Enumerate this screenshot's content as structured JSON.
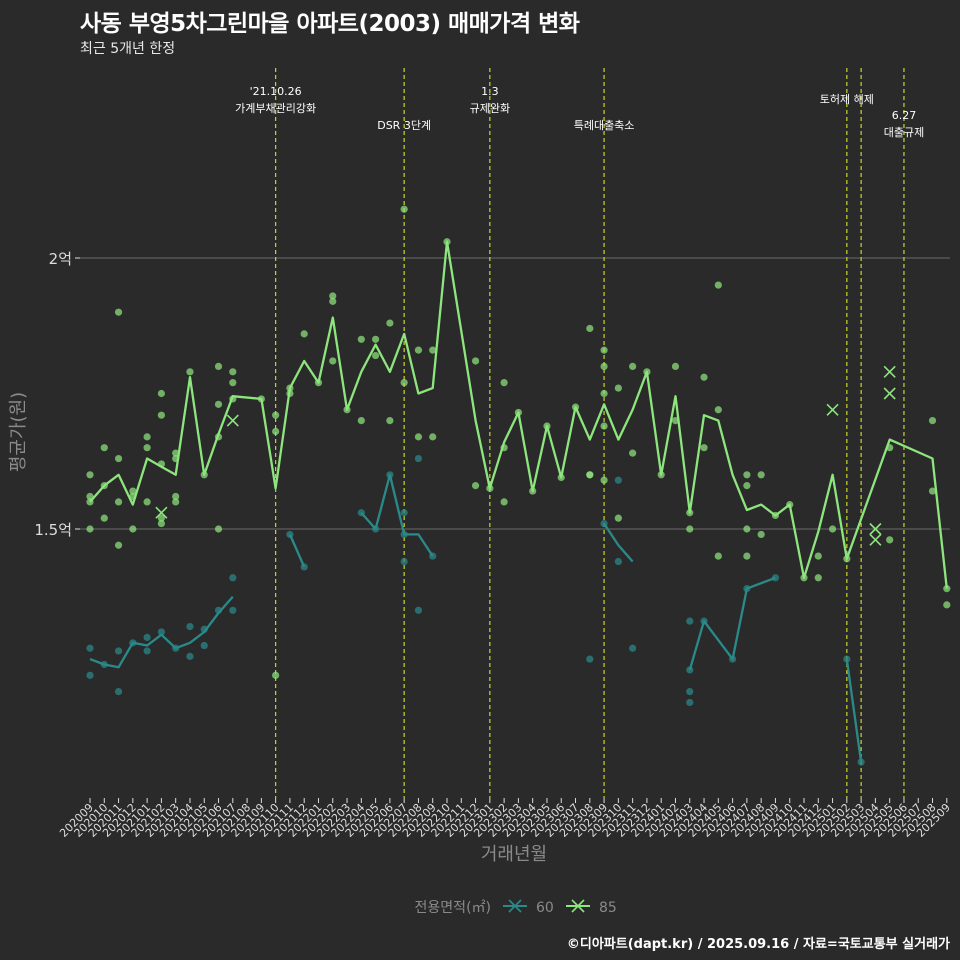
{
  "title": "사동 부영5차그린마을 아파트(2003) 매매가격 변화",
  "subtitle": "최근 5개년 한정",
  "caption": "©디아파트(dapt.kr) / 2025.09.16 / 자료=국토교통부 실거래가",
  "colors": {
    "background": "#2b2a2b",
    "series_60": "#2a8a8a",
    "series_85": "#8de57d",
    "event_line": "#c8d62a",
    "gridline": "#6b6b6b",
    "axis_title": "#8a8a8a",
    "tick_label": "#dddddd"
  },
  "chart_data": {
    "type": "line",
    "xlabel": "거래년월",
    "ylabel": "평균가(원)",
    "y_unit": "억",
    "ylim": [
      1.0,
      2.2
    ],
    "y_ticks": [
      {
        "value": 1.5,
        "label": "1.5억"
      },
      {
        "value": 2.0,
        "label": "2억"
      }
    ],
    "categories": [
      "202009",
      "202010",
      "202011",
      "202012",
      "202101",
      "202102",
      "202103",
      "202104",
      "202105",
      "202106",
      "202107",
      "202108",
      "202109",
      "202110",
      "202111",
      "202112",
      "202201",
      "202202",
      "202203",
      "202204",
      "202205",
      "202206",
      "202207",
      "202208",
      "202209",
      "202210",
      "202211",
      "202212",
      "202301",
      "202302",
      "202303",
      "202304",
      "202305",
      "202306",
      "202307",
      "202308",
      "202309",
      "202310",
      "202311",
      "202312",
      "202401",
      "202402",
      "202403",
      "202404",
      "202405",
      "202406",
      "202407",
      "202408",
      "202409",
      "202410",
      "202411",
      "202412",
      "202501",
      "202502",
      "202503",
      "202504",
      "202505",
      "202506",
      "202507",
      "202508",
      "202509"
    ],
    "legend": {
      "title": "전용면적(㎡)",
      "placement": "bottom"
    },
    "series": [
      {
        "name": "60",
        "line": [
          [
            "202009",
            1.26
          ],
          [
            "202010",
            1.25
          ],
          [
            "202011",
            1.245
          ],
          [
            "202012",
            1.29
          ],
          [
            "202101",
            1.285
          ],
          [
            "202102",
            1.305
          ],
          [
            "202103",
            1.28
          ],
          [
            "202104",
            1.29
          ],
          [
            "202105",
            1.31
          ],
          [
            "202106",
            1.345
          ],
          [
            "202107",
            1.375
          ],
          [
            "202111",
            1.49
          ],
          [
            "202112",
            1.43
          ],
          [
            "202204",
            1.53
          ],
          [
            "202205",
            1.5
          ],
          [
            "202206",
            1.6
          ],
          [
            "202207",
            1.49
          ],
          [
            "202208",
            1.49
          ],
          [
            "202209",
            1.45
          ],
          [
            "202309",
            1.51
          ],
          [
            "202310",
            1.47
          ],
          [
            "202311",
            1.44
          ],
          [
            "202403",
            1.24
          ],
          [
            "202404",
            1.33
          ],
          [
            "202406",
            1.26
          ],
          [
            "202407",
            1.39
          ],
          [
            "202409",
            1.41
          ],
          [
            "202502",
            1.26
          ],
          [
            "202503",
            1.07
          ]
        ],
        "points": [
          [
            "202009",
            1.28
          ],
          [
            "202009",
            1.23
          ],
          [
            "202010",
            1.25
          ],
          [
            "202011",
            1.2
          ],
          [
            "202011",
            1.275
          ],
          [
            "202012",
            1.29
          ],
          [
            "202101",
            1.3
          ],
          [
            "202101",
            1.275
          ],
          [
            "202102",
            1.31
          ],
          [
            "202103",
            1.28
          ],
          [
            "202104",
            1.32
          ],
          [
            "202104",
            1.265
          ],
          [
            "202105",
            1.315
          ],
          [
            "202105",
            1.285
          ],
          [
            "202106",
            1.35
          ],
          [
            "202107",
            1.35
          ],
          [
            "202107",
            1.41
          ],
          [
            "202111",
            1.49
          ],
          [
            "202112",
            1.43
          ],
          [
            "202204",
            1.53
          ],
          [
            "202205",
            1.5
          ],
          [
            "202206",
            1.6
          ],
          [
            "202207",
            1.49
          ],
          [
            "202207",
            1.53
          ],
          [
            "202207",
            1.44
          ],
          [
            "202208",
            1.63
          ],
          [
            "202208",
            1.35
          ],
          [
            "202209",
            1.45
          ],
          [
            "202308",
            1.26
          ],
          [
            "202309",
            1.51
          ],
          [
            "202310",
            1.59
          ],
          [
            "202310",
            1.44
          ],
          [
            "202311",
            1.28
          ],
          [
            "202403",
            1.24
          ],
          [
            "202403",
            1.33
          ],
          [
            "202403",
            1.2
          ],
          [
            "202403",
            1.18
          ],
          [
            "202404",
            1.33
          ],
          [
            "202406",
            1.26
          ],
          [
            "202407",
            1.39
          ],
          [
            "202409",
            1.41
          ],
          [
            "202502",
            1.26
          ],
          [
            "202503",
            1.07
          ]
        ]
      },
      {
        "name": "85",
        "line": [
          [
            "202009",
            1.55
          ],
          [
            "202010",
            1.58
          ],
          [
            "202011",
            1.6
          ],
          [
            "202012",
            1.545
          ],
          [
            "202101",
            1.63
          ],
          [
            "202102",
            1.615
          ],
          [
            "202103",
            1.6
          ],
          [
            "202104",
            1.78
          ],
          [
            "202105",
            1.6
          ],
          [
            "202106",
            1.675
          ],
          [
            "202107",
            1.745
          ],
          [
            "202109",
            1.74
          ],
          [
            "202110",
            1.575
          ],
          [
            "202111",
            1.76
          ],
          [
            "202112",
            1.81
          ],
          [
            "202201",
            1.77
          ],
          [
            "202202",
            1.89
          ],
          [
            "202203",
            1.72
          ],
          [
            "202204",
            1.79
          ],
          [
            "202205",
            1.84
          ],
          [
            "202206",
            1.79
          ],
          [
            "202207",
            1.86
          ],
          [
            "202208",
            1.75
          ],
          [
            "202209",
            1.76
          ],
          [
            "202210",
            2.03
          ],
          [
            "202212",
            1.7
          ],
          [
            "202301",
            1.575
          ],
          [
            "202302",
            1.66
          ],
          [
            "202303",
            1.715
          ],
          [
            "202304",
            1.57
          ],
          [
            "202305",
            1.69
          ],
          [
            "202306",
            1.595
          ],
          [
            "202307",
            1.725
          ],
          [
            "202308",
            1.665
          ],
          [
            "202309",
            1.73
          ],
          [
            "202310",
            1.665
          ],
          [
            "202311",
            1.72
          ],
          [
            "202312",
            1.79
          ],
          [
            "202401",
            1.6
          ],
          [
            "202402",
            1.745
          ],
          [
            "202403",
            1.53
          ],
          [
            "202404",
            1.71
          ],
          [
            "202405",
            1.7
          ],
          [
            "202406",
            1.6
          ],
          [
            "202407",
            1.535
          ],
          [
            "202408",
            1.545
          ],
          [
            "202409",
            1.525
          ],
          [
            "202410",
            1.545
          ],
          [
            "202411",
            1.41
          ],
          [
            "202412",
            1.495
          ],
          [
            "202501",
            1.6
          ],
          [
            "202502",
            1.445
          ],
          [
            "202505",
            1.665
          ],
          [
            "202508",
            1.63
          ],
          [
            "202509",
            1.39
          ]
        ],
        "points": [
          [
            "202009",
            1.6
          ],
          [
            "202009",
            1.56
          ],
          [
            "202009",
            1.55
          ],
          [
            "202009",
            1.5
          ],
          [
            "202010",
            1.58
          ],
          [
            "202010",
            1.52
          ],
          [
            "202010",
            1.65
          ],
          [
            "202011",
            1.9
          ],
          [
            "202011",
            1.63
          ],
          [
            "202011",
            1.55
          ],
          [
            "202011",
            1.47
          ],
          [
            "202012",
            1.57
          ],
          [
            "202012",
            1.56
          ],
          [
            "202012",
            1.5
          ],
          [
            "202101",
            1.67
          ],
          [
            "202101",
            1.65
          ],
          [
            "202101",
            1.55
          ],
          [
            "202102",
            1.75
          ],
          [
            "202102",
            1.71
          ],
          [
            "202102",
            1.62
          ],
          [
            "202102",
            1.52
          ],
          [
            "202102",
            1.51
          ],
          [
            "202103",
            1.64
          ],
          [
            "202103",
            1.63
          ],
          [
            "202103",
            1.56
          ],
          [
            "202103",
            1.55
          ],
          [
            "202104",
            1.79
          ],
          [
            "202105",
            1.6
          ],
          [
            "202106",
            1.8
          ],
          [
            "202106",
            1.73
          ],
          [
            "202106",
            1.67
          ],
          [
            "202106",
            1.5
          ],
          [
            "202107",
            1.79
          ],
          [
            "202107",
            1.77
          ],
          [
            "202107",
            1.74
          ],
          [
            "202109",
            1.74
          ],
          [
            "202110",
            1.71
          ],
          [
            "202110",
            1.68
          ],
          [
            "202110",
            1.23
          ],
          [
            "202111",
            1.76
          ],
          [
            "202111",
            1.75
          ],
          [
            "202112",
            1.86
          ],
          [
            "202201",
            1.77
          ],
          [
            "202202",
            1.93
          ],
          [
            "202202",
            1.92
          ],
          [
            "202202",
            1.81
          ],
          [
            "202203",
            1.72
          ],
          [
            "202204",
            1.85
          ],
          [
            "202204",
            1.7
          ],
          [
            "202205",
            1.85
          ],
          [
            "202205",
            1.82
          ],
          [
            "202206",
            1.88
          ],
          [
            "202206",
            1.7
          ],
          [
            "202207",
            2.09
          ],
          [
            "202207",
            1.77
          ],
          [
            "202208",
            1.83
          ],
          [
            "202208",
            1.67
          ],
          [
            "202209",
            1.83
          ],
          [
            "202209",
            1.67
          ],
          [
            "202210",
            2.03
          ],
          [
            "202212",
            1.81
          ],
          [
            "202212",
            1.58
          ],
          [
            "202301",
            1.575
          ],
          [
            "202302",
            1.77
          ],
          [
            "202302",
            1.65
          ],
          [
            "202302",
            1.55
          ],
          [
            "202303",
            1.715
          ],
          [
            "202304",
            1.57
          ],
          [
            "202305",
            1.69
          ],
          [
            "202306",
            1.595
          ],
          [
            "202307",
            1.725
          ],
          [
            "202308",
            1.87
          ],
          [
            "202308",
            1.6
          ],
          [
            "202308",
            1.6
          ],
          [
            "202309",
            1.83
          ],
          [
            "202309",
            1.8
          ],
          [
            "202309",
            1.75
          ],
          [
            "202309",
            1.69
          ],
          [
            "202309",
            1.59
          ],
          [
            "202310",
            1.76
          ],
          [
            "202310",
            1.52
          ],
          [
            "202311",
            1.8
          ],
          [
            "202311",
            1.64
          ],
          [
            "202312",
            1.79
          ],
          [
            "202401",
            1.6
          ],
          [
            "202402",
            1.8
          ],
          [
            "202402",
            1.7
          ],
          [
            "202403",
            1.53
          ],
          [
            "202403",
            1.5
          ],
          [
            "202404",
            1.78
          ],
          [
            "202404",
            1.65
          ],
          [
            "202405",
            1.95
          ],
          [
            "202405",
            1.72
          ],
          [
            "202405",
            1.45
          ],
          [
            "202407",
            1.6
          ],
          [
            "202407",
            1.58
          ],
          [
            "202407",
            1.5
          ],
          [
            "202407",
            1.45
          ],
          [
            "202408",
            1.6
          ],
          [
            "202408",
            1.49
          ],
          [
            "202409",
            1.525
          ],
          [
            "202410",
            1.545
          ],
          [
            "202411",
            1.41
          ],
          [
            "202412",
            1.45
          ],
          [
            "202412",
            1.41
          ],
          [
            "202501",
            1.5
          ],
          [
            "202502",
            1.445
          ],
          [
            "202505",
            1.65
          ],
          [
            "202505",
            1.48
          ],
          [
            "202508",
            1.7
          ],
          [
            "202508",
            1.57
          ],
          [
            "202509",
            1.39
          ],
          [
            "202509",
            1.36
          ]
        ],
        "crosses": [
          [
            "202102",
            1.53
          ],
          [
            "202107",
            1.7
          ],
          [
            "202501",
            1.72
          ],
          [
            "202504",
            1.5
          ],
          [
            "202504",
            1.48
          ],
          [
            "202505",
            1.79
          ],
          [
            "202505",
            1.75
          ]
        ]
      }
    ],
    "events": [
      {
        "month": "202110",
        "lines": [
          "'21.10.26",
          "가계부채관리강화"
        ],
        "row": 1
      },
      {
        "month": "202207",
        "lines": [
          "DSR 3단계"
        ],
        "row": 2
      },
      {
        "month": "202301",
        "lines": [
          "1.3",
          "규제완화"
        ],
        "row": 1
      },
      {
        "month": "202309",
        "lines": [
          "특례대출축소"
        ],
        "row": 2
      },
      {
        "month": "202502",
        "lines": [
          "토허제 해제"
        ],
        "row": 1
      },
      {
        "month": "202503",
        "lines": [],
        "row": 1
      },
      {
        "month": "202506",
        "lines": [
          "6.27",
          "대출규제"
        ],
        "row": 2
      }
    ]
  }
}
